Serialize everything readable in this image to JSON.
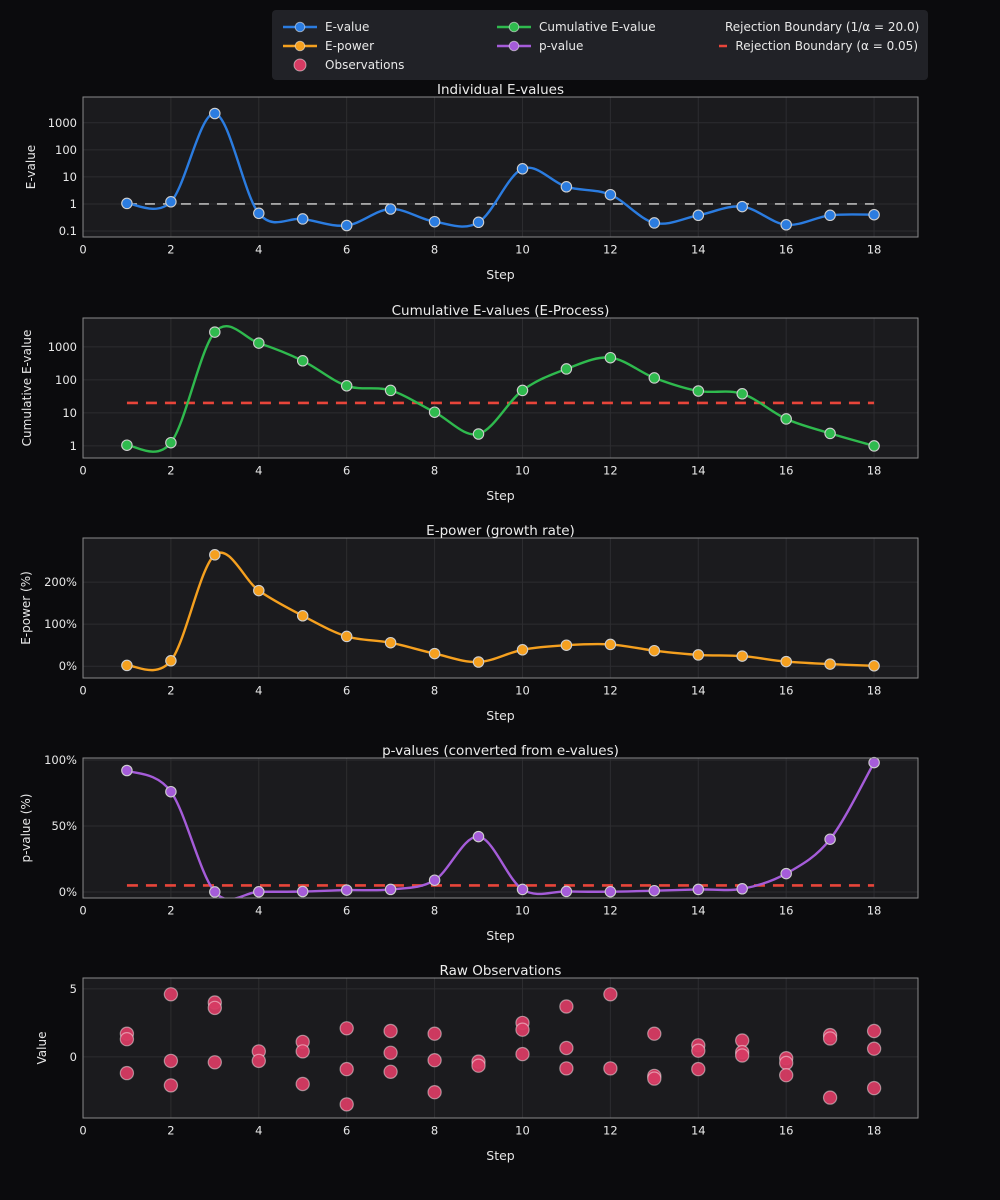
{
  "page": {
    "background": "#0b0b0d",
    "panel_background": "#1b1b1e",
    "grid_color": "#2d2d30",
    "spine_color": "#88888a",
    "text_color": "#e8e8e8"
  },
  "legend": {
    "position": "top-center",
    "items": [
      {
        "label": "E-value",
        "color": "#2b7ce0",
        "swatch": "line-marker",
        "col": 0,
        "row": 0
      },
      {
        "label": "E-power",
        "color": "#f5a01f",
        "swatch": "line-marker",
        "col": 0,
        "row": 1
      },
      {
        "label": "Observations",
        "color": "#d63b63",
        "swatch": "marker",
        "col": 0,
        "row": 2
      },
      {
        "label": "Cumulative E-value",
        "color": "#2fba4e",
        "swatch": "line-marker",
        "col": 1,
        "row": 0
      },
      {
        "label": "p-value",
        "color": "#a55cd9",
        "swatch": "line-marker",
        "col": 1,
        "row": 1
      },
      {
        "label": "Rejection Boundary (1/α = 20.0)",
        "color": "#e8453a",
        "swatch": "dashed",
        "col": 2,
        "row": 0
      },
      {
        "label": "Rejection Boundary (α = 0.05)",
        "color": "#e8453a",
        "swatch": "dashed",
        "col": 2,
        "row": 1
      }
    ]
  },
  "chart_data": [
    {
      "type": "line",
      "title": "Individual E-values",
      "xlabel": "Step",
      "ylabel": "E-value",
      "yscale": "log",
      "grid": true,
      "xlim": [
        0,
        19
      ],
      "ylim": [
        0.06,
        9000
      ],
      "xticks": [
        0,
        2,
        4,
        6,
        8,
        10,
        12,
        14,
        16,
        18
      ],
      "yticks": [
        {
          "v": 0.1,
          "label": "0.1"
        },
        {
          "v": 1,
          "label": "1"
        },
        {
          "v": 10,
          "label": "10"
        },
        {
          "v": 100,
          "label": "100"
        },
        {
          "v": 1000,
          "label": "1000"
        }
      ],
      "x": [
        1,
        2,
        3,
        4,
        5,
        6,
        7,
        8,
        9,
        10,
        11,
        12,
        13,
        14,
        15,
        16,
        17,
        18
      ],
      "series": [
        {
          "name": "E-value",
          "color": "#2b7ce0",
          "values": [
            1.05,
            1.2,
            2200,
            0.45,
            0.28,
            0.16,
            0.65,
            0.22,
            0.21,
            20,
            4.3,
            2.2,
            0.2,
            0.38,
            0.8,
            0.17,
            0.38,
            0.4
          ]
        }
      ],
      "boundaries": [
        {
          "name": "reference-line-one",
          "y": 1,
          "color": "#b9b9b9",
          "width": 1.6,
          "dash": "10 8",
          "xspan": [
            1,
            18
          ]
        }
      ]
    },
    {
      "type": "line",
      "title": "Cumulative E-values (E-Process)",
      "xlabel": "Step",
      "ylabel": "Cumulative E-value",
      "yscale": "log",
      "grid": true,
      "xlim": [
        0,
        19
      ],
      "ylim": [
        0.43,
        7500
      ],
      "xticks": [
        0,
        2,
        4,
        6,
        8,
        10,
        12,
        14,
        16,
        18
      ],
      "yticks": [
        {
          "v": 1,
          "label": "1"
        },
        {
          "v": 10,
          "label": "10"
        },
        {
          "v": 100,
          "label": "100"
        },
        {
          "v": 1000,
          "label": "1000"
        }
      ],
      "x": [
        1,
        2,
        3,
        4,
        5,
        6,
        7,
        8,
        9,
        10,
        11,
        12,
        13,
        14,
        15,
        16,
        17,
        18
      ],
      "series": [
        {
          "name": "Cumulative E-value",
          "color": "#2fba4e",
          "values": [
            1.05,
            1.25,
            2800,
            1300,
            380,
            66,
            48,
            10.5,
            2.3,
            48,
            215,
            470,
            115,
            46,
            38,
            6.6,
            2.4,
            1.0
          ]
        }
      ],
      "boundaries": [
        {
          "name": "rejection-boundary-20",
          "y": 20,
          "color": "#e8453a",
          "width": 2.6,
          "dash": "11 8",
          "xspan": [
            1,
            18
          ]
        }
      ]
    },
    {
      "type": "line",
      "title": "E-power (growth rate)",
      "xlabel": "Step",
      "ylabel": "E-power (%)",
      "yscale": "linear",
      "grid": true,
      "xlim": [
        0,
        19
      ],
      "ylim": [
        -28,
        305
      ],
      "xticks": [
        0,
        2,
        4,
        6,
        8,
        10,
        12,
        14,
        16,
        18
      ],
      "yticks": [
        {
          "v": 0,
          "label": "0%"
        },
        {
          "v": 100,
          "label": "100%"
        },
        {
          "v": 200,
          "label": "200%"
        }
      ],
      "x": [
        1,
        2,
        3,
        4,
        5,
        6,
        7,
        8,
        9,
        10,
        11,
        12,
        13,
        14,
        15,
        16,
        17,
        18
      ],
      "series": [
        {
          "name": "E-power",
          "color": "#f5a01f",
          "values": [
            2,
            13,
            265,
            180,
            120,
            71,
            56,
            30,
            10,
            39,
            50,
            52,
            37,
            27,
            24,
            11,
            5,
            1
          ]
        }
      ],
      "boundaries": []
    },
    {
      "type": "line",
      "title": "p-values (converted from e-values)",
      "xlabel": "Step",
      "ylabel": "p-value (%)",
      "yscale": "linear",
      "grid": true,
      "xlim": [
        0,
        19
      ],
      "ylim": [
        -4.5,
        101.5
      ],
      "xticks": [
        0,
        2,
        4,
        6,
        8,
        10,
        12,
        14,
        16,
        18
      ],
      "yticks": [
        {
          "v": 0,
          "label": "0%"
        },
        {
          "v": 50,
          "label": "50%"
        },
        {
          "v": 100,
          "label": "100%"
        }
      ],
      "x": [
        1,
        2,
        3,
        4,
        5,
        6,
        7,
        8,
        9,
        10,
        11,
        12,
        13,
        14,
        15,
        16,
        17,
        18
      ],
      "series": [
        {
          "name": "p-value",
          "color": "#a55cd9",
          "values": [
            92,
            76,
            0.1,
            0.2,
            0.4,
            1.5,
            2,
            9,
            42,
            2,
            0.5,
            0.3,
            1,
            2,
            2.5,
            14,
            40,
            98
          ]
        }
      ],
      "boundaries": [
        {
          "name": "rejection-boundary-alpha",
          "y": 5,
          "color": "#e8453a",
          "width": 2.6,
          "dash": "11 8",
          "xspan": [
            1,
            18
          ]
        }
      ]
    },
    {
      "type": "scatter",
      "title": "Raw Observations",
      "xlabel": "Step",
      "ylabel": "Value",
      "yscale": "linear",
      "grid": true,
      "xlim": [
        0,
        19
      ],
      "ylim": [
        -4.5,
        5.8
      ],
      "xticks": [
        0,
        2,
        4,
        6,
        8,
        10,
        12,
        14,
        16,
        18
      ],
      "yticks": [
        {
          "v": 0,
          "label": "0"
        },
        {
          "v": 5,
          "label": "5"
        }
      ],
      "series": [
        {
          "name": "Observations",
          "color": "#d63b63",
          "points": [
            [
              1,
              1.7
            ],
            [
              1,
              1.3
            ],
            [
              1,
              -1.2
            ],
            [
              2,
              4.6
            ],
            [
              2,
              -0.3
            ],
            [
              2,
              -2.1
            ],
            [
              3,
              4.0
            ],
            [
              3,
              3.6
            ],
            [
              3,
              -0.4
            ],
            [
              4,
              0.4
            ],
            [
              4,
              -0.3
            ],
            [
              5,
              1.1
            ],
            [
              5,
              0.4
            ],
            [
              5,
              -2.0
            ],
            [
              6,
              2.1
            ],
            [
              6,
              -0.9
            ],
            [
              6,
              -3.5
            ],
            [
              7,
              1.9
            ],
            [
              7,
              0.3
            ],
            [
              7,
              -1.1
            ],
            [
              8,
              1.7
            ],
            [
              8,
              -0.25
            ],
            [
              8,
              -2.6
            ],
            [
              9,
              -0.35
            ],
            [
              9,
              -0.65
            ],
            [
              10,
              2.5
            ],
            [
              10,
              2.0
            ],
            [
              10,
              0.2
            ],
            [
              11,
              3.7
            ],
            [
              11,
              0.65
            ],
            [
              11,
              -0.85
            ],
            [
              12,
              4.6
            ],
            [
              12,
              -0.85
            ],
            [
              13,
              1.7
            ],
            [
              13,
              -1.4
            ],
            [
              13,
              -1.6
            ],
            [
              14,
              0.85
            ],
            [
              14,
              0.45
            ],
            [
              14,
              -0.9
            ],
            [
              15,
              1.2
            ],
            [
              15,
              0.35
            ],
            [
              15,
              0.1
            ],
            [
              16,
              -0.1
            ],
            [
              16,
              -0.45
            ],
            [
              16,
              -1.35
            ],
            [
              17,
              1.6
            ],
            [
              17,
              1.35
            ],
            [
              17,
              -3.0
            ],
            [
              18,
              1.9
            ],
            [
              18,
              0.6
            ],
            [
              18,
              -2.3
            ]
          ]
        }
      ],
      "boundaries": []
    }
  ]
}
